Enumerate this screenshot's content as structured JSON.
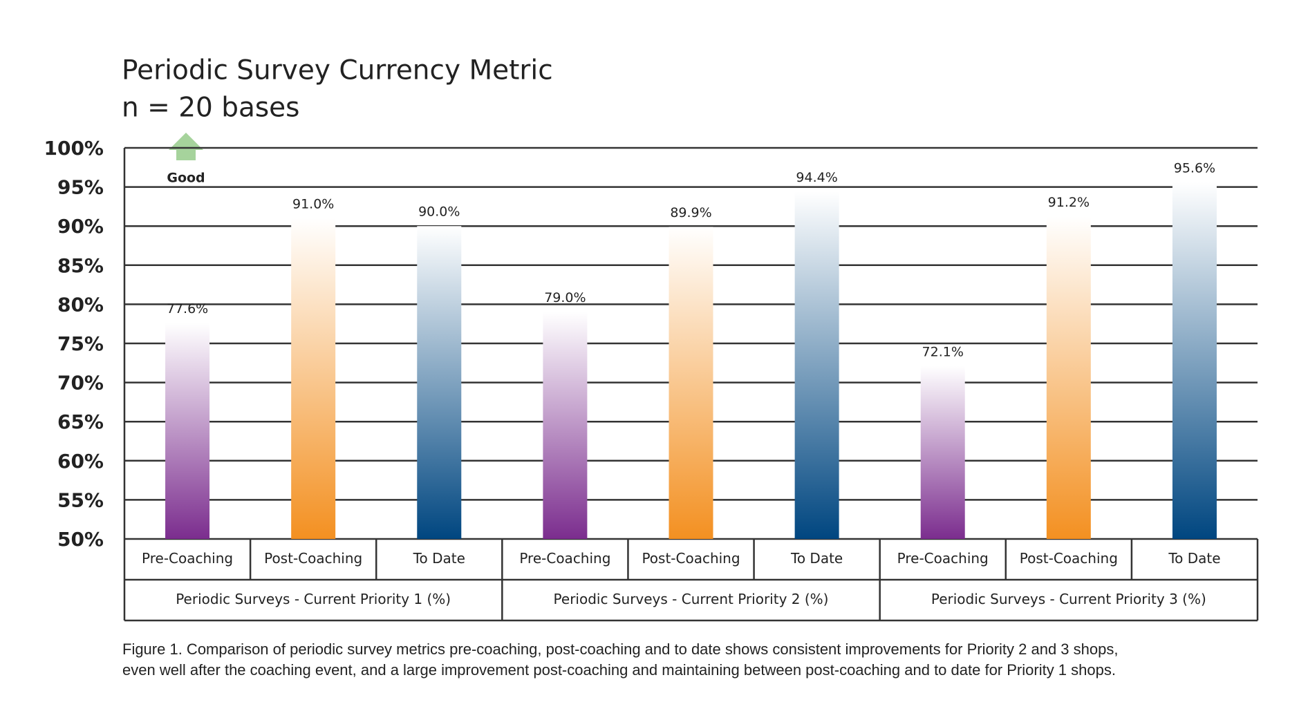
{
  "chart_data": {
    "type": "bar",
    "title": "Periodic Survey Currency Metric",
    "subtitle": "n = 20 bases",
    "annotation": "Good",
    "caption": [
      "Figure 1. Comparison of periodic survey metrics pre-coaching, post-coaching and to date shows consistent improvements for Priority 2 and 3 shops,",
      "even well after the coaching event, and a large improvement post-coaching and maintaining between post-coaching and to date for Priority 1 shops."
    ],
    "categories": [
      "Periodic Surveys - Current Priority 1 (%)",
      "Periodic Surveys - Current Priority 2 (%)",
      "Periodic Surveys - Current Priority 3 (%)"
    ],
    "series": [
      {
        "name": "Pre-Coaching",
        "color": "#7b2d8e",
        "values": [
          77.6,
          79.0,
          72.1
        ],
        "value_labels": [
          "77.6%",
          "79.0%",
          "72.1%"
        ]
      },
      {
        "name": "Post-Coaching",
        "color": "#f39021",
        "values": [
          91.0,
          89.9,
          91.2
        ],
        "value_labels": [
          "91.0%",
          "89.9%",
          "91.2%"
        ]
      },
      {
        "name": "To Date",
        "color": "#004680",
        "values": [
          90.0,
          94.4,
          95.6
        ],
        "value_labels": [
          "90.0%",
          "94.4%",
          "95.6%"
        ]
      }
    ],
    "ylim": [
      50,
      100
    ],
    "yticks": [
      {
        "value": 50,
        "label": "50%"
      },
      {
        "value": 55,
        "label": "55%"
      },
      {
        "value": 60,
        "label": "60%"
      },
      {
        "value": 65,
        "label": "65%"
      },
      {
        "value": 70,
        "label": "70%"
      },
      {
        "value": 75,
        "label": "75%"
      },
      {
        "value": 80,
        "label": "80%"
      },
      {
        "value": 85,
        "label": "85%"
      },
      {
        "value": 90,
        "label": "90%"
      },
      {
        "value": 95,
        "label": "95%"
      },
      {
        "value": 100,
        "label": "100%"
      }
    ],
    "grid": true
  }
}
